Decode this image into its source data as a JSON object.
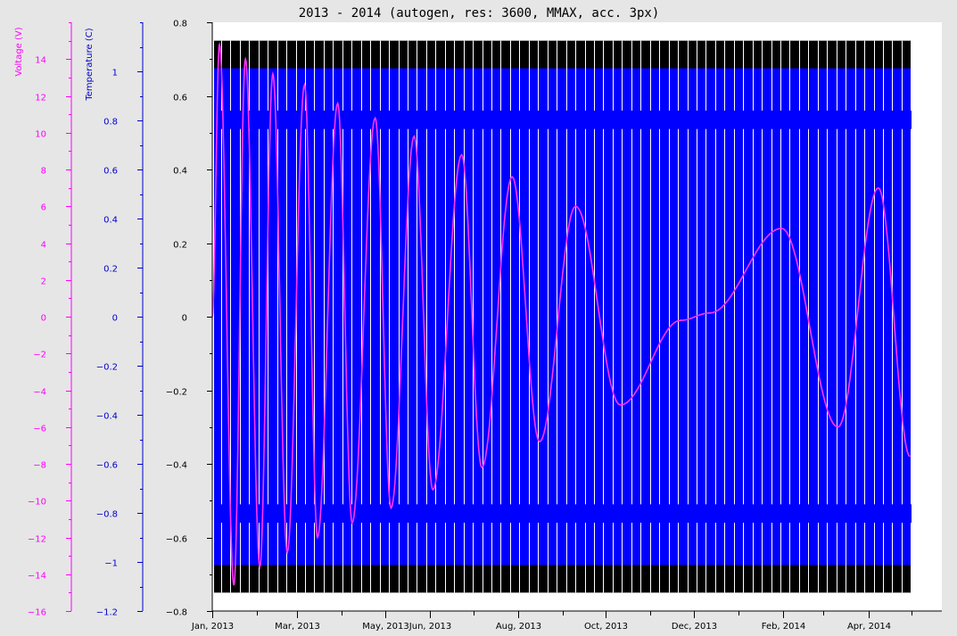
{
  "chart_data": {
    "type": "line",
    "title": "2013 - 2014 (autogen, res: 3600, MMAX, acc. 3px)",
    "x_range": [
      "2013-01-01",
      "2014-05-01"
    ],
    "x_ticks": [
      "Jan, 2013",
      "Mar, 2013",
      "May, 2013",
      "Jun, 2013",
      "Aug, 2013",
      "Oct, 2013",
      "Dec, 2013",
      "Feb, 2014",
      "Apr, 2014"
    ],
    "axes": {
      "main": {
        "ylim": [
          -0.8,
          0.8
        ],
        "ticks": [
          "0.8",
          "0.6",
          "0.4",
          "0.2",
          "0",
          "−0.2",
          "−0.4",
          "−0.6",
          "−0.8"
        ]
      },
      "temperature": {
        "label": "Temperature (C)",
        "ylim": [
          -1.2,
          1.2
        ],
        "ticks": [
          "1",
          "0.8",
          "0.6",
          "0.4",
          "0.2",
          "0",
          "−0.2",
          "−0.4",
          "−0.6",
          "−0.8",
          "−1",
          "−1.2"
        ],
        "color": "#0000cc"
      },
      "voltage": {
        "label": "Voltage (V)",
        "ylim": [
          -16,
          16
        ],
        "ticks": [
          "14",
          "12",
          "10",
          "8",
          "6",
          "4",
          "2",
          "0",
          "−2",
          "−4",
          "−6",
          "−8",
          "−10",
          "−12",
          "−14",
          "−16"
        ],
        "color": "#ff00ff"
      }
    },
    "series": [
      {
        "kind": "band",
        "outer": [
          -0.75,
          0.75
        ],
        "inner": [
          -0.675,
          0.675
        ],
        "outer_color": "#000000",
        "inner_color": "#0000ff"
      },
      {
        "kind": "line",
        "color": "#ff33ff",
        "points": [
          [
            "2013-01-01",
            0
          ],
          [
            "2013-01-06",
            0.74
          ],
          [
            "2013-01-16",
            -0.73
          ],
          [
            "2013-01-24",
            0.7
          ],
          [
            "2013-02-03",
            -0.68
          ],
          [
            "2013-02-12",
            0.66
          ],
          [
            "2013-02-22",
            -0.64
          ],
          [
            "2013-03-06",
            0.63
          ],
          [
            "2013-03-15",
            -0.6
          ],
          [
            "2013-03-29",
            0.58
          ],
          [
            "2013-04-08",
            -0.56
          ],
          [
            "2013-04-24",
            0.54
          ],
          [
            "2013-05-05",
            -0.52
          ],
          [
            "2013-05-21",
            0.49
          ],
          [
            "2013-06-03",
            -0.47
          ],
          [
            "2013-06-23",
            0.44
          ],
          [
            "2013-07-07",
            -0.41
          ],
          [
            "2013-07-28",
            0.38
          ],
          [
            "2013-08-16",
            -0.34
          ],
          [
            "2013-09-10",
            0.3
          ],
          [
            "2013-10-11",
            -0.24
          ],
          [
            "2013-11-22",
            -0.01
          ],
          [
            "2013-12-12",
            0.01
          ],
          [
            "2014-01-31",
            0.24
          ],
          [
            "2014-03-11",
            -0.3
          ],
          [
            "2014-04-08",
            0.35
          ],
          [
            "2014-04-30",
            -0.38
          ]
        ]
      }
    ]
  }
}
